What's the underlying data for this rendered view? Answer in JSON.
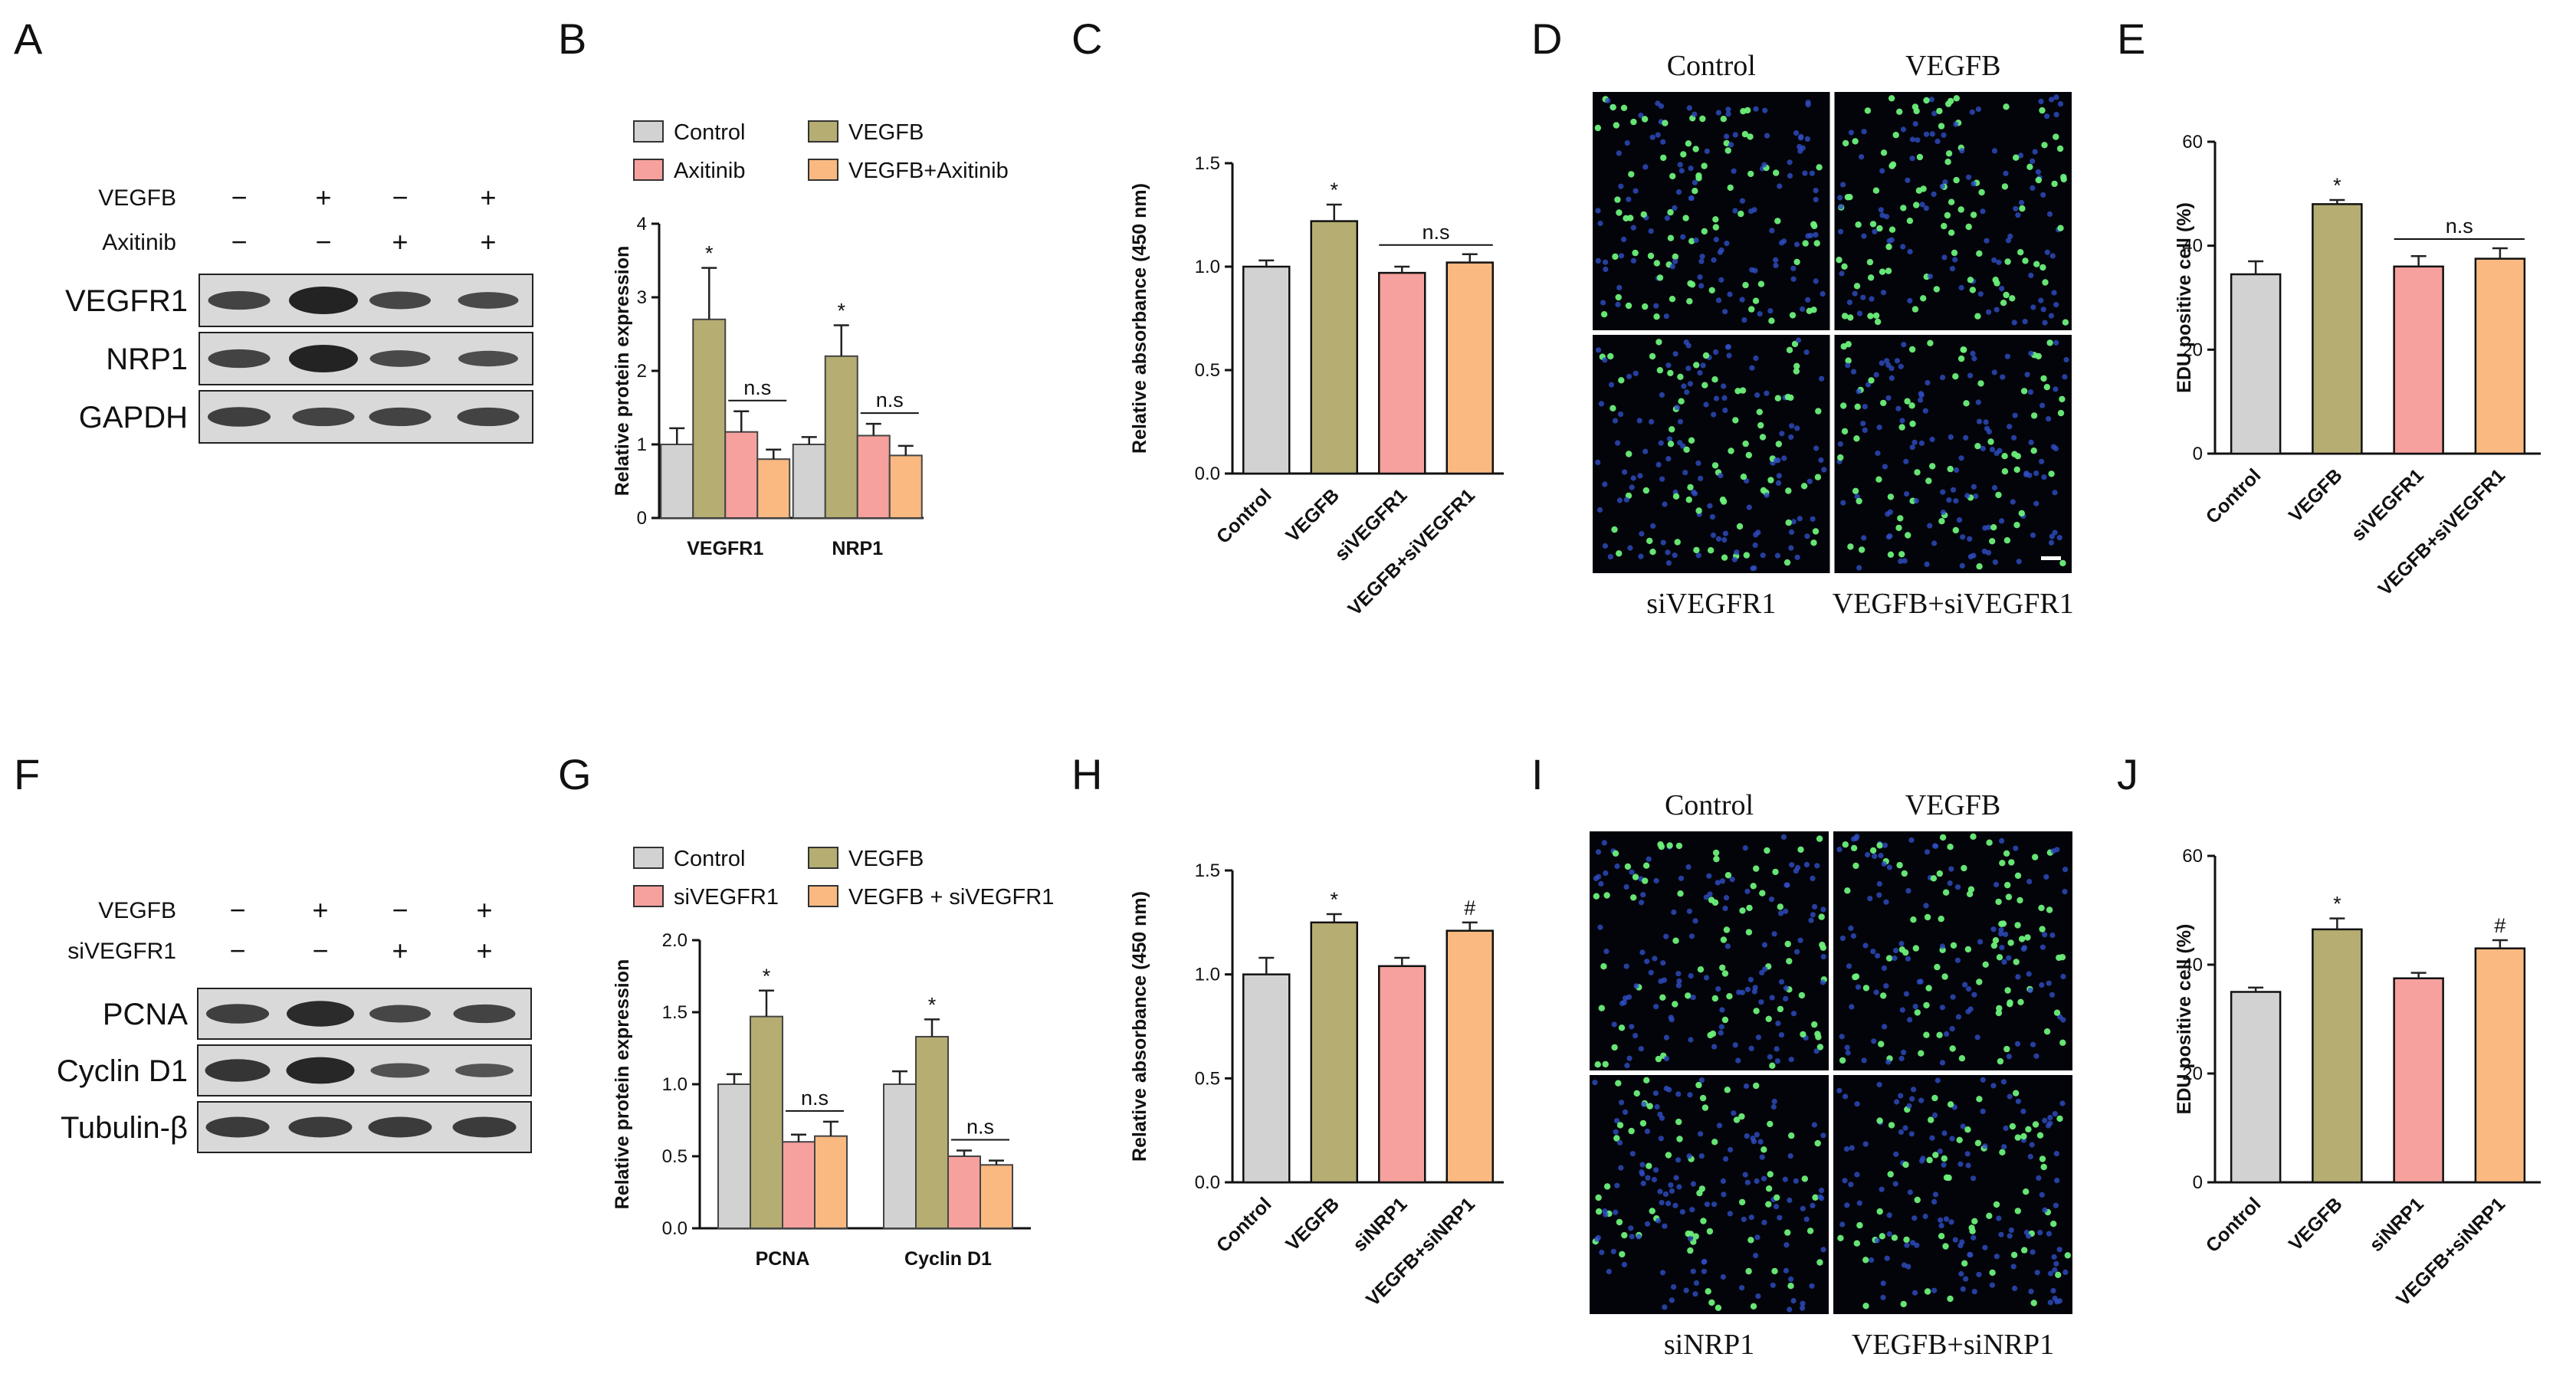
{
  "panels": {
    "A": "A",
    "B": "B",
    "C": "C",
    "D": "D",
    "E": "E",
    "F": "F",
    "G": "G",
    "H": "H",
    "I": "I",
    "J": "J"
  },
  "colors": {
    "control": "#d2d2d2",
    "vegfb": "#b5ad72",
    "inhibitor": "#f6a19d",
    "combo": "#f9b981",
    "nucleus_blue": "#2f4fc4",
    "edu_green": "#6cf07a"
  },
  "blot_A": {
    "conditions": [
      {
        "name": "VEGFB",
        "signs": [
          "−",
          "+",
          "−",
          "+"
        ]
      },
      {
        "name": "Axitinib",
        "signs": [
          "−",
          "−",
          "+",
          "+"
        ]
      }
    ],
    "proteins": [
      "VEGFR1",
      "NRP1",
      "GAPDH"
    ],
    "band_intensity": [
      [
        0.55,
        1.0,
        0.5,
        0.45
      ],
      [
        0.55,
        1.0,
        0.45,
        0.4
      ],
      [
        0.6,
        0.55,
        0.55,
        0.55
      ]
    ]
  },
  "blot_F": {
    "conditions": [
      {
        "name": "VEGFB",
        "signs": [
          "−",
          "+",
          "−",
          "+"
        ]
      },
      {
        "name": "siVEGFR1",
        "signs": [
          "−",
          "−",
          "+",
          "+"
        ]
      }
    ],
    "proteins": [
      "PCNA",
      "Cyclin D1",
      "Tubulin-β"
    ],
    "band_intensity": [
      [
        0.6,
        0.9,
        0.5,
        0.55
      ],
      [
        0.75,
        0.95,
        0.35,
        0.3
      ],
      [
        0.65,
        0.65,
        0.65,
        0.65
      ]
    ]
  },
  "microscopy_D": {
    "labels": [
      "Control",
      "VEGFB",
      "siVEGFR1",
      "VEGFB+siVEGFR1"
    ],
    "green_fraction": [
      0.35,
      0.48,
      0.36,
      0.37
    ]
  },
  "microscopy_I": {
    "labels": [
      "Control",
      "VEGFB",
      "siNRP1",
      "VEGFB+siNRP1"
    ],
    "green_fraction": [
      0.35,
      0.46,
      0.37,
      0.43
    ]
  },
  "chart_data": [
    {
      "panel": "B",
      "type": "bar",
      "title": "",
      "ylabel": "Relative protein expression",
      "xlabel": "",
      "ylim": [
        0,
        4
      ],
      "yticks": [
        "0",
        "1",
        "2",
        "3",
        "4"
      ],
      "legend": [
        "Control",
        "VEGFB",
        "Axitinib",
        "VEGFB+Axitinib"
      ],
      "categories": [
        "VEGFR1",
        "NRP1"
      ],
      "series": [
        {
          "name": "Control",
          "values": [
            1.0,
            1.0
          ],
          "errors": [
            0.22,
            0.1
          ]
        },
        {
          "name": "VEGFB",
          "values": [
            2.7,
            2.2
          ],
          "errors": [
            0.7,
            0.42
          ]
        },
        {
          "name": "Axitinib",
          "values": [
            1.17,
            1.12
          ],
          "errors": [
            0.28,
            0.16
          ]
        },
        {
          "name": "VEGFB+Axitinib",
          "values": [
            0.8,
            0.85
          ],
          "errors": [
            0.13,
            0.13
          ]
        }
      ],
      "annotations": [
        {
          "category": 0,
          "series": 1,
          "text": "*"
        },
        {
          "category": 0,
          "from": 2,
          "to": 3,
          "text": "n.s"
        },
        {
          "category": 1,
          "series": 1,
          "text": "*"
        },
        {
          "category": 1,
          "from": 2,
          "to": 3,
          "text": "n.s"
        }
      ]
    },
    {
      "panel": "C",
      "type": "bar",
      "title": "",
      "ylabel": "Relative absorbance (450 nm)",
      "xlabel": "",
      "ylim": [
        0,
        1.5
      ],
      "yticks": [
        "0.0",
        "0.5",
        "1.0",
        "1.5"
      ],
      "categories": [
        "Control",
        "VEGFB",
        "siVEGFR1",
        "VEGFB+siVEGFR1"
      ],
      "values": [
        1.0,
        1.22,
        0.97,
        1.02
      ],
      "errors": [
        0.03,
        0.08,
        0.03,
        0.04
      ],
      "annotations": [
        {
          "bar": 1,
          "text": "*"
        },
        {
          "from": 2,
          "to": 3,
          "text": "n.s"
        }
      ]
    },
    {
      "panel": "E",
      "type": "bar",
      "title": "",
      "ylabel": "EDU positive cell (%)",
      "xlabel": "",
      "ylim": [
        0,
        60
      ],
      "yticks": [
        "0",
        "20",
        "40",
        "60"
      ],
      "categories": [
        "Control",
        "VEGFB",
        "siVEGFR1",
        "VEGFB+siVEGFR1"
      ],
      "values": [
        34.5,
        48,
        36,
        37.5
      ],
      "errors": [
        2.5,
        0.8,
        2.0,
        2.0
      ],
      "annotations": [
        {
          "bar": 1,
          "text": "*"
        },
        {
          "from": 2,
          "to": 3,
          "text": "n.s"
        }
      ]
    },
    {
      "panel": "G",
      "type": "bar",
      "title": "",
      "ylabel": "Relative protein expression",
      "xlabel": "",
      "ylim": [
        0,
        2.0
      ],
      "yticks": [
        "0.0",
        "0.5",
        "1.0",
        "1.5",
        "2.0"
      ],
      "legend": [
        "Control",
        "VEGFB",
        "siVEGFR1",
        "VEGFB + siVEGFR1"
      ],
      "categories": [
        "PCNA",
        "Cyclin D1"
      ],
      "series": [
        {
          "name": "Control",
          "values": [
            1.0,
            1.0
          ],
          "errors": [
            0.07,
            0.09
          ]
        },
        {
          "name": "VEGFB",
          "values": [
            1.47,
            1.33
          ],
          "errors": [
            0.18,
            0.12
          ]
        },
        {
          "name": "siVEGFR1",
          "values": [
            0.6,
            0.5
          ],
          "errors": [
            0.05,
            0.04
          ]
        },
        {
          "name": "VEGFB + siVEGFR1",
          "values": [
            0.64,
            0.44
          ],
          "errors": [
            0.1,
            0.03
          ]
        }
      ],
      "annotations": [
        {
          "category": 0,
          "series": 1,
          "text": "*"
        },
        {
          "category": 0,
          "from": 2,
          "to": 3,
          "text": "n.s"
        },
        {
          "category": 1,
          "series": 1,
          "text": "*"
        },
        {
          "category": 1,
          "from": 2,
          "to": 3,
          "text": "n.s"
        }
      ]
    },
    {
      "panel": "H",
      "type": "bar",
      "title": "",
      "ylabel": "Relative absorbance (450 nm)",
      "xlabel": "",
      "ylim": [
        0,
        1.5
      ],
      "yticks": [
        "0.0",
        "0.5",
        "1.0",
        "1.5"
      ],
      "categories": [
        "Control",
        "VEGFB",
        "siNRP1",
        "VEGFB+siNRP1"
      ],
      "values": [
        1.0,
        1.25,
        1.04,
        1.21
      ],
      "errors": [
        0.08,
        0.04,
        0.04,
        0.04
      ],
      "annotations": [
        {
          "bar": 1,
          "text": "*"
        },
        {
          "bar": 3,
          "text": "#"
        }
      ]
    },
    {
      "panel": "J",
      "type": "bar",
      "title": "",
      "ylabel": "EDU positive cell (%)",
      "xlabel": "",
      "ylim": [
        0,
        60
      ],
      "yticks": [
        "0",
        "20",
        "40",
        "60"
      ],
      "categories": [
        "Control",
        "VEGFB",
        "siNRP1",
        "VEGFB+siNRP1"
      ],
      "values": [
        35,
        46.5,
        37.5,
        43
      ],
      "errors": [
        0.8,
        2.0,
        1.0,
        1.5
      ],
      "annotations": [
        {
          "bar": 1,
          "text": "*"
        },
        {
          "bar": 3,
          "text": "#"
        }
      ]
    }
  ]
}
